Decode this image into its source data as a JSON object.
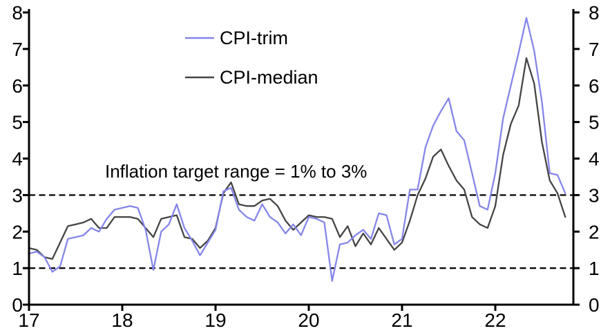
{
  "figure": {
    "background": "#ffffff",
    "axis_color": "#000000",
    "annotation": "Inflation target range = 1% to 3%",
    "legend": [
      {
        "label": "CPI-trim",
        "color": "#8585ea"
      },
      {
        "label": "CPI-median",
        "color": "#444444"
      }
    ],
    "axes": {
      "x_tick_labels": [
        "17",
        "18",
        "19",
        "20",
        "21",
        "22"
      ],
      "y_tick_labels_left": [
        "0",
        "1",
        "2",
        "3",
        "4",
        "5",
        "6",
        "7",
        "8"
      ],
      "y_tick_labels_right": [
        "0",
        "1",
        "2",
        "3",
        "4",
        "5",
        "6",
        "7",
        "8"
      ]
    }
  },
  "chart_data": {
    "type": "line",
    "title": "",
    "xlabel": "",
    "ylabel": "",
    "x_axis": "years 2017 to 2022, monthly data points, tick labels 17-22 at January of each year",
    "x_tick_labels": [
      "17",
      "18",
      "19",
      "20",
      "21",
      "22"
    ],
    "points_per_year": 12,
    "x_start": "2017-01",
    "x_end": "2022-10",
    "ylim": [
      0,
      8
    ],
    "y_ticks": [
      0,
      1,
      2,
      3,
      4,
      5,
      6,
      7,
      8
    ],
    "grid": false,
    "legend_position": "upper-center-left, stacked, no border",
    "annotation_text": "Inflation target range = 1% to 3%",
    "reference_lines": [
      {
        "y": 1,
        "style": "dashed",
        "color": "#000000"
      },
      {
        "y": 3,
        "style": "dashed",
        "color": "#000000"
      }
    ],
    "series": [
      {
        "name": "CPI-trim",
        "color": "#8585ea",
        "values": [
          1.4,
          1.45,
          1.3,
          0.9,
          1.05,
          1.8,
          1.85,
          1.9,
          2.1,
          2.0,
          2.35,
          2.6,
          2.65,
          2.7,
          2.65,
          2.05,
          0.95,
          2.0,
          2.2,
          2.75,
          2.1,
          1.75,
          1.35,
          1.7,
          2.05,
          3.1,
          3.2,
          2.6,
          2.4,
          2.3,
          2.75,
          2.4,
          2.25,
          1.95,
          2.2,
          1.9,
          2.4,
          2.35,
          2.25,
          0.65,
          1.65,
          1.7,
          1.9,
          2.05,
          1.8,
          2.5,
          2.45,
          1.65,
          1.8,
          3.15,
          3.15,
          4.3,
          4.9,
          5.3,
          5.65,
          4.75,
          4.5,
          3.6,
          2.7,
          2.6,
          3.6,
          5.1,
          6.0,
          6.9,
          7.85,
          6.95,
          5.55,
          3.6,
          3.55,
          3.05
        ]
      },
      {
        "name": "CPI-median",
        "color": "#444444",
        "values": [
          1.55,
          1.5,
          1.3,
          1.25,
          1.7,
          2.15,
          2.2,
          2.25,
          2.35,
          2.1,
          2.1,
          2.4,
          2.4,
          2.4,
          2.35,
          2.1,
          1.85,
          2.35,
          2.4,
          2.45,
          1.85,
          1.8,
          1.55,
          1.75,
          2.1,
          3.05,
          3.35,
          2.75,
          2.7,
          2.7,
          2.85,
          2.9,
          2.7,
          2.3,
          2.05,
          2.25,
          2.45,
          2.4,
          2.4,
          2.35,
          1.85,
          2.15,
          1.6,
          1.95,
          1.65,
          2.1,
          1.8,
          1.5,
          1.7,
          2.3,
          3.0,
          3.45,
          4.05,
          4.25,
          3.8,
          3.4,
          3.15,
          2.4,
          2.2,
          2.1,
          2.7,
          4.1,
          4.95,
          5.45,
          6.75,
          6.05,
          4.45,
          3.4,
          3.05,
          2.4
        ]
      }
    ]
  }
}
